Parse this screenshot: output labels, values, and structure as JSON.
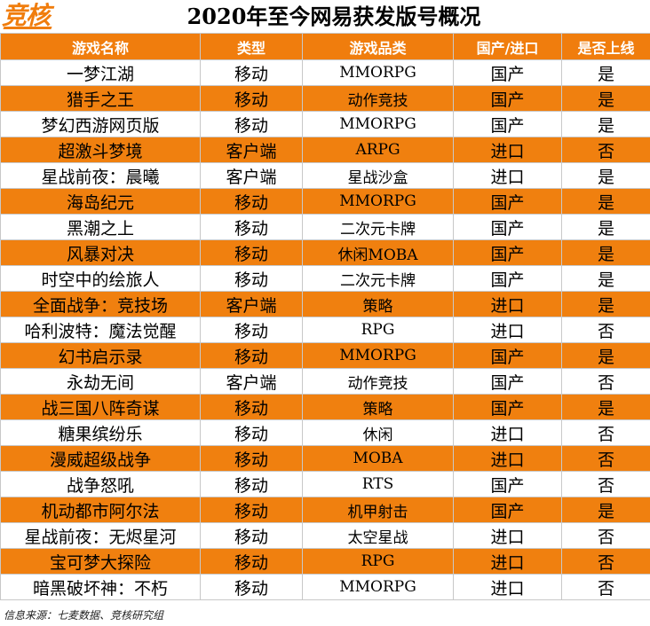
{
  "brand": {
    "logo": "竞核",
    "accent_color": "#f07d0d"
  },
  "title": "2020年至今网易获发版号概况",
  "table": {
    "headers": [
      "游戏名称",
      "类型",
      "游戏品类",
      "国产/进口",
      "是否上线"
    ],
    "rows": [
      [
        "一梦江湖",
        "移动",
        "MMORPG",
        "国产",
        "是"
      ],
      [
        "猎手之王",
        "移动",
        "动作竞技",
        "国产",
        "是"
      ],
      [
        "梦幻西游网页版",
        "移动",
        "MMORPG",
        "国产",
        "是"
      ],
      [
        "超激斗梦境",
        "客户端",
        "ARPG",
        "进口",
        "否"
      ],
      [
        "星战前夜：晨曦",
        "客户端",
        "星战沙盒",
        "进口",
        "是"
      ],
      [
        "海岛纪元",
        "移动",
        "MMORPG",
        "国产",
        "是"
      ],
      [
        "黑潮之上",
        "移动",
        "二次元卡牌",
        "国产",
        "是"
      ],
      [
        "风暴对决",
        "移动",
        "休闲MOBA",
        "国产",
        "是"
      ],
      [
        "时空中的绘旅人",
        "移动",
        "二次元卡牌",
        "国产",
        "是"
      ],
      [
        "全面战争：竞技场",
        "客户端",
        "策略",
        "进口",
        "是"
      ],
      [
        "哈利波特：魔法觉醒",
        "移动",
        "RPG",
        "进口",
        "否"
      ],
      [
        "幻书启示录",
        "移动",
        "MMORPG",
        "国产",
        "是"
      ],
      [
        "永劫无间",
        "客户端",
        "动作竞技",
        "国产",
        "否"
      ],
      [
        "战三国八阵奇谋",
        "移动",
        "策略",
        "国产",
        "是"
      ],
      [
        "糖果缤纷乐",
        "移动",
        "休闲",
        "进口",
        "否"
      ],
      [
        "漫威超级战争",
        "移动",
        "MOBA",
        "进口",
        "否"
      ],
      [
        "战争怒吼",
        "移动",
        "RTS",
        "国产",
        "否"
      ],
      [
        "机动都市阿尔法",
        "移动",
        "机甲射击",
        "国产",
        "是"
      ],
      [
        "星战前夜：无烬星河",
        "移动",
        "太空星战",
        "进口",
        "否"
      ],
      [
        "宝可梦大探险",
        "移动",
        "RPG",
        "进口",
        "否"
      ],
      [
        "暗黑破坏神：不朽",
        "移动",
        "MMORPG",
        "进口",
        "否"
      ]
    ]
  },
  "footer": "信息来源：七麦数据、竞核研究组"
}
